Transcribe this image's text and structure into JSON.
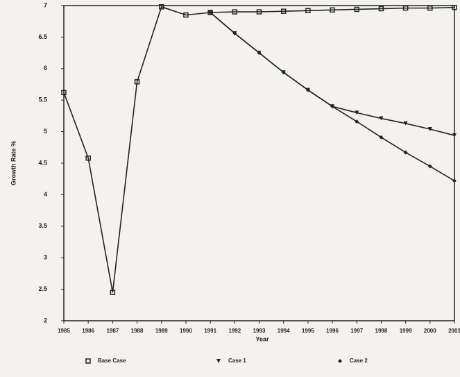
{
  "chart_data": {
    "type": "line",
    "y_label": "Growth Rate %",
    "x_label": "Year",
    "x": [
      1985,
      1986,
      1987,
      1988,
      1989,
      1990,
      1991,
      1992,
      1993,
      1994,
      1995,
      1996,
      1997,
      1998,
      1999,
      2000,
      2001
    ],
    "xlim": [
      1985,
      2001
    ],
    "xticks": [
      1985,
      1986,
      1987,
      1988,
      1989,
      1990,
      1991,
      1992,
      1993,
      1994,
      1995,
      1996,
      1997,
      1998,
      1999,
      2000,
      2001
    ],
    "ylim": [
      2,
      7
    ],
    "yticks": [
      2,
      2.5,
      3,
      3.5,
      4,
      4.5,
      5,
      5.5,
      6,
      6.5,
      7
    ],
    "series": [
      {
        "name": "Base Case",
        "color": "#222222",
        "marker": "square",
        "values": [
          5.62,
          4.58,
          2.45,
          5.79,
          6.98,
          6.85,
          6.89,
          6.9,
          6.9,
          6.91,
          6.92,
          6.93,
          6.94,
          6.95,
          6.96,
          6.96,
          6.97
        ]
      },
      {
        "name": "Case 1",
        "color": "#222222",
        "marker": "triangle",
        "values": [
          null,
          null,
          null,
          null,
          null,
          null,
          6.89,
          6.56,
          6.25,
          5.94,
          5.66,
          5.4,
          5.3,
          5.21,
          5.13,
          5.04,
          4.94
        ]
      },
      {
        "name": "Case 2",
        "color": "#222222",
        "marker": "diamond",
        "values": [
          null,
          null,
          null,
          null,
          null,
          null,
          6.89,
          6.56,
          6.25,
          5.94,
          5.66,
          5.4,
          5.16,
          4.91,
          4.67,
          4.45,
          4.22
        ]
      }
    ]
  }
}
